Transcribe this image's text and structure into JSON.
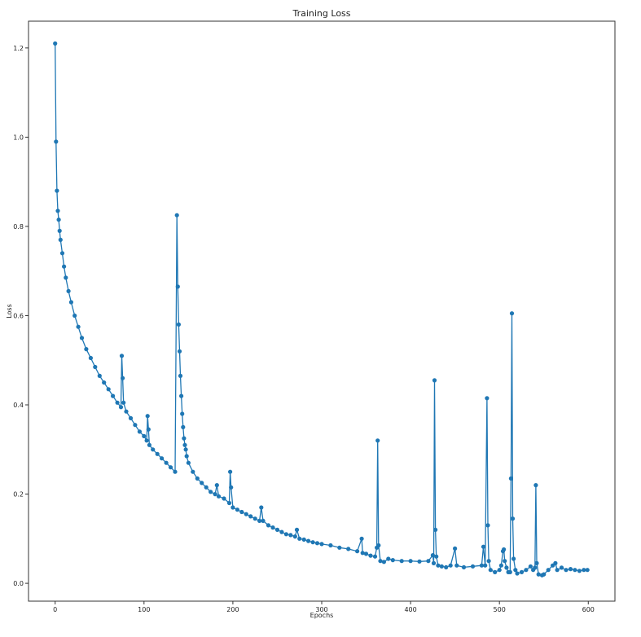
{
  "chart_data": {
    "type": "line",
    "title": "Training Loss",
    "xlabel": "Epochs",
    "ylabel": "Loss",
    "xlim": [
      -30,
      630
    ],
    "ylim": [
      -0.04,
      1.26
    ],
    "xticks": [
      0,
      100,
      200,
      300,
      400,
      500,
      600
    ],
    "yticks": [
      0.0,
      0.2,
      0.4,
      0.6,
      0.8,
      1.0,
      1.2
    ],
    "xtick_labels": [
      "0",
      "100",
      "200",
      "300",
      "400",
      "500",
      "600"
    ],
    "ytick_labels": [
      "0.0",
      "0.2",
      "0.4",
      "0.6",
      "0.8",
      "1.0",
      "1.2"
    ],
    "grid": false,
    "series": [
      {
        "color": "#1f77b4",
        "marker": "circle",
        "points": [
          [
            0,
            1.21
          ],
          [
            1,
            0.99
          ],
          [
            2,
            0.88
          ],
          [
            3,
            0.835
          ],
          [
            4,
            0.815
          ],
          [
            5,
            0.79
          ],
          [
            6,
            0.77
          ],
          [
            8,
            0.74
          ],
          [
            10,
            0.71
          ],
          [
            12,
            0.685
          ],
          [
            15,
            0.655
          ],
          [
            18,
            0.63
          ],
          [
            22,
            0.6
          ],
          [
            26,
            0.575
          ],
          [
            30,
            0.55
          ],
          [
            35,
            0.525
          ],
          [
            40,
            0.505
          ],
          [
            45,
            0.485
          ],
          [
            50,
            0.465
          ],
          [
            55,
            0.45
          ],
          [
            60,
            0.435
          ],
          [
            65,
            0.42
          ],
          [
            70,
            0.405
          ],
          [
            74,
            0.395
          ],
          [
            75,
            0.51
          ],
          [
            76,
            0.46
          ],
          [
            77,
            0.405
          ],
          [
            80,
            0.385
          ],
          [
            85,
            0.37
          ],
          [
            90,
            0.355
          ],
          [
            95,
            0.34
          ],
          [
            100,
            0.33
          ],
          [
            103,
            0.32
          ],
          [
            104,
            0.375
          ],
          [
            105,
            0.345
          ],
          [
            106,
            0.31
          ],
          [
            110,
            0.3
          ],
          [
            115,
            0.29
          ],
          [
            120,
            0.28
          ],
          [
            125,
            0.27
          ],
          [
            130,
            0.26
          ],
          [
            135,
            0.25
          ],
          [
            137,
            0.825
          ],
          [
            138,
            0.665
          ],
          [
            139,
            0.58
          ],
          [
            140,
            0.52
          ],
          [
            141,
            0.465
          ],
          [
            142,
            0.42
          ],
          [
            143,
            0.38
          ],
          [
            144,
            0.35
          ],
          [
            145,
            0.325
          ],
          [
            146,
            0.31
          ],
          [
            147,
            0.3
          ],
          [
            148,
            0.285
          ],
          [
            150,
            0.27
          ],
          [
            155,
            0.25
          ],
          [
            160,
            0.235
          ],
          [
            165,
            0.225
          ],
          [
            170,
            0.215
          ],
          [
            175,
            0.205
          ],
          [
            180,
            0.2
          ],
          [
            182,
            0.22
          ],
          [
            184,
            0.195
          ],
          [
            190,
            0.19
          ],
          [
            196,
            0.18
          ],
          [
            197,
            0.25
          ],
          [
            198,
            0.215
          ],
          [
            200,
            0.17
          ],
          [
            205,
            0.165
          ],
          [
            210,
            0.16
          ],
          [
            215,
            0.155
          ],
          [
            220,
            0.15
          ],
          [
            225,
            0.145
          ],
          [
            230,
            0.14
          ],
          [
            232,
            0.17
          ],
          [
            234,
            0.14
          ],
          [
            240,
            0.13
          ],
          [
            245,
            0.125
          ],
          [
            250,
            0.12
          ],
          [
            255,
            0.115
          ],
          [
            260,
            0.11
          ],
          [
            265,
            0.108
          ],
          [
            270,
            0.105
          ],
          [
            272,
            0.12
          ],
          [
            275,
            0.1
          ],
          [
            280,
            0.098
          ],
          [
            285,
            0.095
          ],
          [
            290,
            0.092
          ],
          [
            295,
            0.09
          ],
          [
            300,
            0.088
          ],
          [
            310,
            0.085
          ],
          [
            320,
            0.08
          ],
          [
            330,
            0.077
          ],
          [
            340,
            0.072
          ],
          [
            345,
            0.1
          ],
          [
            346,
            0.068
          ],
          [
            350,
            0.066
          ],
          [
            355,
            0.062
          ],
          [
            360,
            0.06
          ],
          [
            362,
            0.08
          ],
          [
            363,
            0.32
          ],
          [
            364,
            0.085
          ],
          [
            366,
            0.05
          ],
          [
            370,
            0.048
          ],
          [
            375,
            0.055
          ],
          [
            380,
            0.052
          ],
          [
            390,
            0.05
          ],
          [
            400,
            0.05
          ],
          [
            410,
            0.049
          ],
          [
            420,
            0.05
          ],
          [
            425,
            0.063
          ],
          [
            426,
            0.045
          ],
          [
            427,
            0.455
          ],
          [
            428,
            0.12
          ],
          [
            429,
            0.06
          ],
          [
            431,
            0.04
          ],
          [
            435,
            0.038
          ],
          [
            440,
            0.036
          ],
          [
            445,
            0.04
          ],
          [
            450,
            0.078
          ],
          [
            452,
            0.04
          ],
          [
            460,
            0.036
          ],
          [
            470,
            0.038
          ],
          [
            480,
            0.04
          ],
          [
            482,
            0.082
          ],
          [
            484,
            0.04
          ],
          [
            486,
            0.415
          ],
          [
            487,
            0.13
          ],
          [
            488,
            0.05
          ],
          [
            490,
            0.03
          ],
          [
            495,
            0.025
          ],
          [
            500,
            0.03
          ],
          [
            502,
            0.04
          ],
          [
            504,
            0.072
          ],
          [
            505,
            0.076
          ],
          [
            506,
            0.05
          ],
          [
            508,
            0.035
          ],
          [
            510,
            0.025
          ],
          [
            512,
            0.025
          ],
          [
            513,
            0.235
          ],
          [
            514,
            0.605
          ],
          [
            515,
            0.145
          ],
          [
            516,
            0.055
          ],
          [
            518,
            0.03
          ],
          [
            520,
            0.022
          ],
          [
            525,
            0.025
          ],
          [
            530,
            0.03
          ],
          [
            535,
            0.038
          ],
          [
            538,
            0.03
          ],
          [
            540,
            0.035
          ],
          [
            541,
            0.22
          ],
          [
            542,
            0.045
          ],
          [
            544,
            0.02
          ],
          [
            548,
            0.018
          ],
          [
            550,
            0.02
          ],
          [
            555,
            0.03
          ],
          [
            560,
            0.04
          ],
          [
            563,
            0.045
          ],
          [
            565,
            0.03
          ],
          [
            570,
            0.035
          ],
          [
            575,
            0.03
          ],
          [
            580,
            0.032
          ],
          [
            585,
            0.03
          ],
          [
            590,
            0.028
          ],
          [
            595,
            0.03
          ],
          [
            599,
            0.03
          ]
        ]
      }
    ]
  }
}
